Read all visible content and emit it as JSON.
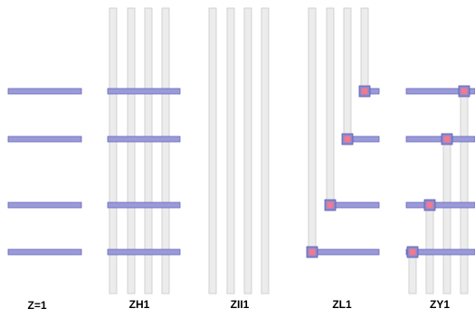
{
  "labels": {
    "z1": "Z=1",
    "zh1": "ZH1",
    "zii1": "ZII1",
    "zl1": "ZL1",
    "zy1": "ZY1"
  },
  "colors": {
    "column_fill": "#ececec",
    "column_stroke": "#c8c8c8",
    "wire_fill": "#9a9ad8",
    "wire_stroke": "#6868c0",
    "via_outer": "#8a8ad0",
    "via_inner": "#f07a90"
  }
}
